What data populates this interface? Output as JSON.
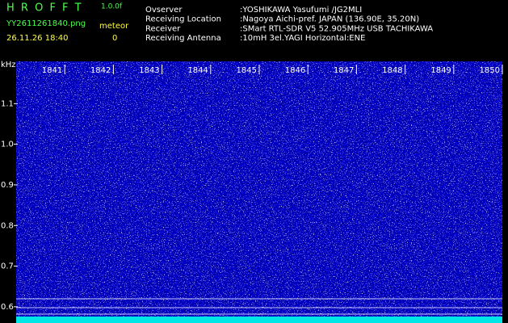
{
  "header": {
    "app": "H R O F F T",
    "version": "1.0.0f",
    "file": "YY2611261840.png",
    "meteor_label": "meteor",
    "timestamp": "26.11.26 18:40",
    "meteor_count": "0",
    "info": [
      {
        "key": "Ovserver",
        "value": ":YOSHIKAWA Yasufumi /JG2MLI"
      },
      {
        "key": "Receiving Location",
        "value": ":Nagoya Aichi-pref. JAPAN (136.90E, 35.20N)"
      },
      {
        "key": "Receiver",
        "value": ":SMart RTL-SDR V5 52.905MHz USB TACHIKAWA"
      },
      {
        "key": "Receiving Antenna",
        "value": ":10mH 3el.YAGI Horizontal:ENE"
      }
    ]
  },
  "chart_data": {
    "type": "spectrogram",
    "ylabel": "kHz",
    "xlim": [
      1840,
      1850
    ],
    "xticks": [
      1841,
      1842,
      1843,
      1844,
      1845,
      1846,
      1847,
      1848,
      1849,
      1850
    ],
    "ylim": [
      0.56,
      1.204
    ],
    "yticks": [
      0.6,
      0.7,
      0.8,
      0.9,
      {
        "value": 1,
        "label": "1.0"
      },
      1.1
    ]
  }
}
